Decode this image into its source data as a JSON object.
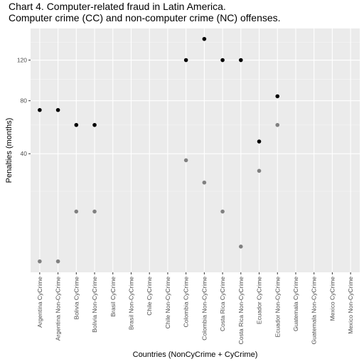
{
  "chart_data": {
    "type": "scatter",
    "title": "Chart 4. Computer-related fraud in Latin America.",
    "subtitle": "Computer crime (CC) and non-computer crime (NC) offenses.",
    "xlabel": "Countries (NonCyCrime + CyCrime)",
    "ylabel": "Penalties (months)",
    "y_scale": "sqrt",
    "y_ticks": [
      40,
      80,
      120
    ],
    "ylim": [
      0,
      144
    ],
    "grid": true,
    "categories": [
      "Argentina CyCrime",
      "Argentina Non-CyCrime",
      "Bolivia CyCrime",
      "Bolivia Non-CyCrime",
      "Brasil CyCrime",
      "Brasil Non-CyCrime",
      "Chile CyCrime",
      "Chile Non-CyCrime",
      "Colombia CyCrime",
      "Colombia Non-CyCrime",
      "Costa Rica CyCrime",
      "Costa Rica Non-CyCrime",
      "Ecuador CyCrime",
      "Ecuador Non-CyCrime",
      "Guatemala CyCrime",
      "Guatemala Non-CyCrime",
      "Mexico CyCrime",
      "Mexico Non-CyCrime"
    ],
    "series": [
      {
        "color": "#000000",
        "values": [
          72,
          72,
          60,
          60,
          null,
          null,
          null,
          null,
          120,
          144,
          120,
          120,
          48,
          84,
          null,
          null,
          null,
          null
        ]
      },
      {
        "color": "#808080",
        "values": [
          1,
          1,
          12,
          12,
          null,
          null,
          null,
          null,
          36,
          24,
          12,
          3,
          30,
          60,
          null,
          null,
          null,
          null
        ]
      }
    ],
    "colors": {
      "panel": "#ebebeb",
      "grid_major": "#ffffff",
      "grid_minor": "#f5f5f5"
    }
  }
}
